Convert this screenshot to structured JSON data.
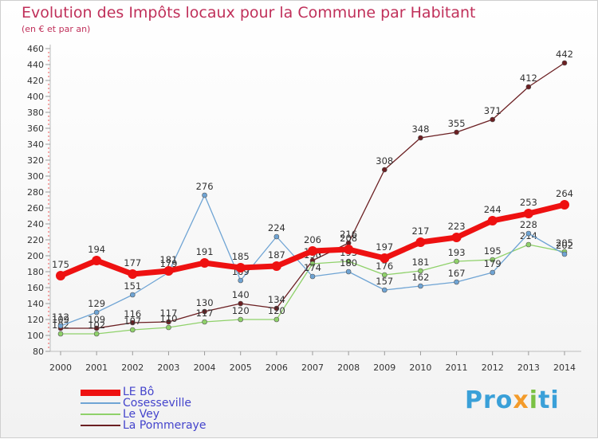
{
  "chart_data": {
    "type": "line",
    "title": "Evolution des Impôts locaux pour la Commune par Habitant",
    "subtitle": "(en € et par an)",
    "xlabel": "",
    "ylabel": "",
    "x": [
      2000,
      2001,
      2002,
      2003,
      2004,
      2005,
      2006,
      2007,
      2008,
      2009,
      2010,
      2011,
      2012,
      2013,
      2014
    ],
    "ylim": [
      80,
      460
    ],
    "yticks": [
      80,
      100,
      120,
      140,
      160,
      180,
      200,
      220,
      240,
      260,
      280,
      300,
      320,
      340,
      360,
      380,
      400,
      420,
      440,
      460
    ],
    "grid": false,
    "legend": "bottom-left",
    "series": [
      {
        "name": "La Pommeraye",
        "color": "#6b1f22",
        "labeled": true,
        "values": [
          109,
          109,
          116,
          117,
          130,
          140,
          134,
          194,
          216,
          308,
          348,
          355,
          371,
          412,
          442
        ]
      },
      {
        "name": "Le Vey",
        "color": "#8fd16a",
        "labeled": true,
        "values": [
          102,
          102,
          107,
          110,
          117,
          120,
          120,
          190,
          193,
          176,
          181,
          193,
          195,
          214,
          205
        ]
      },
      {
        "name": "Cosesseville",
        "color": "#6fa4d4",
        "labeled": true,
        "values": [
          112,
          129,
          151,
          179,
          276,
          169,
          224,
          174,
          180,
          157,
          162,
          167,
          179,
          228,
          202
        ]
      },
      {
        "name": "LE Bô",
        "color": "#ee1111",
        "labeled": true,
        "values": [
          175,
          194,
          177,
          181,
          191,
          185,
          187,
          206,
          208,
          197,
          217,
          223,
          244,
          253,
          264
        ]
      }
    ]
  },
  "legend_items": [
    {
      "label": "LE Bô",
      "color": "#ee1111"
    },
    {
      "label": "Cosesseville",
      "color": "#6fa4d4"
    },
    {
      "label": "Le Vey",
      "color": "#8fd16a"
    },
    {
      "label": "La Pommeraye",
      "color": "#6b1f22"
    }
  ],
  "logo": {
    "p1": "Pro",
    "p2": "x",
    "p3": "i",
    "p4": "ti"
  }
}
